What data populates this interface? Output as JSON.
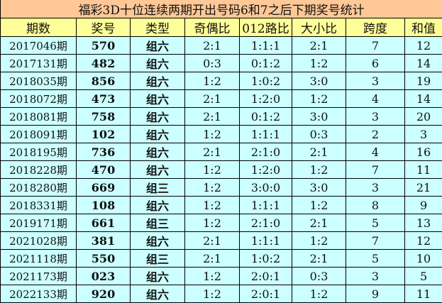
{
  "title": "福彩3D十位连续两期开出号码6和7之后下期奖号统计",
  "colors": {
    "title_bg": "#FFC896",
    "header_bg": "#FFFF99",
    "row_bg": "#CCFFFF"
  },
  "headers": [
    "期数",
    "奖号",
    "类型",
    "奇偶比",
    "012路比",
    "大小比",
    "跨度",
    "和值"
  ],
  "rows": [
    [
      "2017046期",
      "570",
      "组六",
      "2:1",
      "1:1:1",
      "2:1",
      "7",
      "12"
    ],
    [
      "2017131期",
      "482",
      "组六",
      "0:3",
      "0:1:2",
      "1:2",
      "6",
      "14"
    ],
    [
      "2018035期",
      "856",
      "组六",
      "1:2",
      "1:0:2",
      "3:0",
      "3",
      "19"
    ],
    [
      "2018072期",
      "473",
      "组六",
      "2:1",
      "1:2:0",
      "1:2",
      "4",
      "14"
    ],
    [
      "2018081期",
      "758",
      "组六",
      "2:1",
      "0:1:2",
      "3:0",
      "3",
      "20"
    ],
    [
      "2018091期",
      "102",
      "组六",
      "1:2",
      "1:1:1",
      "0:3",
      "2",
      "3"
    ],
    [
      "2018195期",
      "736",
      "组六",
      "2:1",
      "2:1:0",
      "2:1",
      "4",
      "16"
    ],
    [
      "2018228期",
      "470",
      "组六",
      "1:2",
      "1:2:0",
      "1:2",
      "7",
      "11"
    ],
    [
      "2018280期",
      "669",
      "组三",
      "1:2",
      "3:0:0",
      "3:0",
      "3",
      "21"
    ],
    [
      "2018331期",
      "108",
      "组六",
      "1:2",
      "1:1:1",
      "1:2",
      "8",
      "9"
    ],
    [
      "2019171期",
      "661",
      "组三",
      "1:2",
      "2:1:0",
      "2:1",
      "5",
      "13"
    ],
    [
      "2021028期",
      "381",
      "组六",
      "2:1",
      "1:1:1",
      "1:2",
      "7",
      "12"
    ],
    [
      "2021118期",
      "550",
      "组三",
      "2:1",
      "1:0:2",
      "2:1",
      "5",
      "10"
    ],
    [
      "2021173期",
      "023",
      "组六",
      "1:2",
      "2:0:1",
      "0:3",
      "3",
      "5"
    ],
    [
      "2022133期",
      "920",
      "组六",
      "1:2",
      "2:0:1",
      "1:2",
      "9",
      "11"
    ]
  ]
}
